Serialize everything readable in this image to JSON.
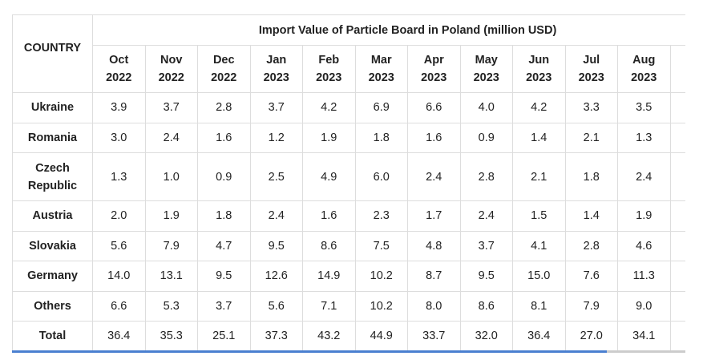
{
  "header": {
    "title": "Import Value of Particle Board in Poland (million USD)",
    "country_label": "COUNTRY"
  },
  "columns": [
    "Oct 2022",
    "Nov 2022",
    "Dec 2022",
    "Jan 2023",
    "Feb 2023",
    "Mar 2023",
    "Apr 2023",
    "May 2023",
    "Jun 2023",
    "Jul 2023",
    "Aug 2023"
  ],
  "rows": [
    {
      "country": "Ukraine",
      "values": [
        "3.9",
        "3.7",
        "2.8",
        "3.7",
        "4.2",
        "6.9",
        "6.6",
        "4.0",
        "4.2",
        "3.3",
        "3.5"
      ]
    },
    {
      "country": "Romania",
      "values": [
        "3.0",
        "2.4",
        "1.6",
        "1.2",
        "1.9",
        "1.8",
        "1.6",
        "0.9",
        "1.4",
        "2.1",
        "1.3"
      ]
    },
    {
      "country": "Czech Republic",
      "values": [
        "1.3",
        "1.0",
        "0.9",
        "2.5",
        "4.9",
        "6.0",
        "2.4",
        "2.8",
        "2.1",
        "1.8",
        "2.4"
      ]
    },
    {
      "country": "Austria",
      "values": [
        "2.0",
        "1.9",
        "1.8",
        "2.4",
        "1.6",
        "2.3",
        "1.7",
        "2.4",
        "1.5",
        "1.4",
        "1.9"
      ]
    },
    {
      "country": "Slovakia",
      "values": [
        "5.6",
        "7.9",
        "4.7",
        "9.5",
        "8.6",
        "7.5",
        "4.8",
        "3.7",
        "4.1",
        "2.8",
        "4.6"
      ]
    },
    {
      "country": "Germany",
      "values": [
        "14.0",
        "13.1",
        "9.5",
        "12.6",
        "14.9",
        "10.2",
        "8.7",
        "9.5",
        "15.0",
        "7.6",
        "11.3"
      ]
    },
    {
      "country": "Others",
      "values": [
        "6.6",
        "5.3",
        "3.7",
        "5.6",
        "7.1",
        "10.2",
        "8.0",
        "8.6",
        "8.1",
        "7.9",
        "9.0"
      ]
    },
    {
      "country": "Total",
      "values": [
        "36.4",
        "35.3",
        "25.1",
        "37.3",
        "43.2",
        "44.9",
        "33.7",
        "32.0",
        "36.4",
        "27.0",
        "34.1"
      ]
    }
  ]
}
